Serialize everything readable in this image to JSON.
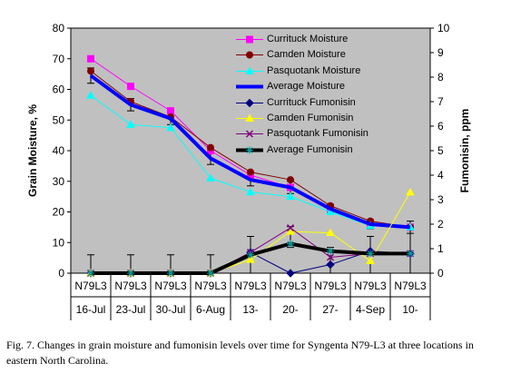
{
  "chart_data": {
    "type": "line",
    "title": "",
    "ylabel": "Grain Moisture, %",
    "y2label": "Fumonisin, ppm",
    "ylim": [
      0,
      80
    ],
    "y2lim": [
      0,
      10
    ],
    "yticks": [
      "0",
      "10",
      "20",
      "30",
      "40",
      "50",
      "60",
      "70",
      "80"
    ],
    "y2ticks": [
      "0",
      "1",
      "2",
      "3",
      "4",
      "5",
      "6",
      "7",
      "8",
      "9",
      "10"
    ],
    "categories_row1": [
      "N79L3",
      "N79L3",
      "N79L3",
      "N79L3",
      "N79L3",
      "N79L3",
      "N79L3",
      "N79L3",
      "N79L3"
    ],
    "categories_row2": [
      "16-Jul",
      "23-Jul",
      "30-Jul",
      "6-Aug",
      "13-",
      "20-",
      "27-",
      "4-Sep",
      "10-"
    ],
    "grid": false,
    "legend_position": "top-right",
    "series": [
      {
        "name": "Currituck Moisture",
        "axis": "left",
        "color": "#ff00ff",
        "marker": "square",
        "width": 1,
        "values": [
          70,
          61,
          53,
          40,
          32,
          28,
          21,
          16,
          15
        ]
      },
      {
        "name": "Camden Moisture",
        "axis": "left",
        "color": "#800000",
        "marker": "circle",
        "width": 1,
        "values": [
          66,
          56,
          51,
          41,
          33,
          30.5,
          22,
          17,
          15
        ]
      },
      {
        "name": "Pasquotank Moisture",
        "axis": "left",
        "color": "#00ffff",
        "marker": "triangle",
        "width": 1,
        "values": [
          58,
          48.5,
          47.5,
          31,
          26.5,
          25,
          20,
          15.5,
          15
        ]
      },
      {
        "name": "Average Moisture",
        "axis": "left",
        "color": "#0000ff",
        "marker": "none",
        "width": 4,
        "values": [
          64.5,
          55,
          50.5,
          37.5,
          30.5,
          28,
          21,
          16,
          15
        ]
      },
      {
        "name": "Currituck Fumonisin",
        "axis": "right",
        "color": "#000080",
        "marker": "diamond",
        "width": 1,
        "values": [
          0,
          0,
          0,
          0,
          0.85,
          0,
          0.35,
          0.9,
          0.8
        ]
      },
      {
        "name": "Camden Fumonisin",
        "axis": "right",
        "color": "#ffff00",
        "marker": "triangle",
        "width": 1,
        "values": [
          0,
          0,
          0,
          0,
          0.55,
          1.7,
          1.65,
          0.5,
          3.3
        ]
      },
      {
        "name": "Pasquotank Fumonisin",
        "axis": "right",
        "color": "#800080",
        "marker": "x",
        "width": 1,
        "values": [
          0,
          0,
          0,
          0,
          0.85,
          1.85,
          0.65,
          0.8,
          0.8
        ]
      },
      {
        "name": "Average Fumonisin",
        "axis": "right",
        "color": "#000000",
        "marker": "star",
        "width": 4,
        "values": [
          0,
          0,
          0,
          0,
          0.75,
          1.2,
          0.9,
          0.8,
          0.8
        ]
      }
    ],
    "error_bars": [
      {
        "series": "Average Moisture",
        "axis": "left",
        "low": [
          62,
          53,
          48.5,
          35.5,
          28.5,
          26,
          19.5,
          14.5,
          13
        ],
        "high": [
          67,
          57,
          52.5,
          39.5,
          32.5,
          30,
          22.5,
          17.5,
          17
        ]
      },
      {
        "series": "Average Fumonisin",
        "axis": "right",
        "low": [
          0,
          0,
          0,
          0,
          0,
          1.05,
          0,
          0,
          0
        ],
        "high": [
          0.75,
          0.75,
          0.75,
          0.75,
          1.5,
          1.9,
          1.05,
          1.5,
          1.9
        ]
      }
    ]
  },
  "caption": "Fig. 7.  Changes in grain moisture and fumonisin levels over time for Syngenta N79-L3 at three locations in eastern North Carolina."
}
